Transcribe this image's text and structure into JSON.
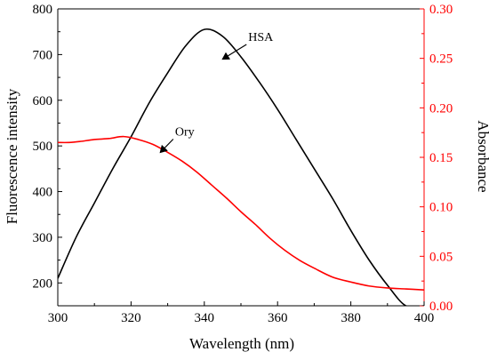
{
  "chart_data": {
    "type": "line",
    "xlabel": "Wavelength (nm)",
    "ylabel_left": "Fluorescence intensity",
    "ylabel_right": "Absorbance",
    "xlim": [
      300,
      400
    ],
    "ylim_left": [
      150,
      800
    ],
    "ylim_right": [
      0.0,
      0.3
    ],
    "x_ticks": [
      "300",
      "320",
      "340",
      "360",
      "380",
      "400"
    ],
    "y_left_ticks": [
      "200",
      "300",
      "400",
      "500",
      "600",
      "700",
      "800"
    ],
    "y_right_ticks": [
      "0.00",
      "0.05",
      "0.10",
      "0.15",
      "0.20",
      "0.25",
      "0.30"
    ],
    "left_axis_color": "#000000",
    "right_axis_color": "#ff0000",
    "series": [
      {
        "name": "HSA",
        "axis": "left",
        "color": "#000000",
        "x": [
          300,
          305,
          310,
          315,
          320,
          325,
          330,
          335,
          340,
          345,
          350,
          355,
          360,
          365,
          370,
          375,
          380,
          385,
          390,
          395,
          400
        ],
        "y": [
          210,
          300,
          375,
          450,
          520,
          595,
          660,
          720,
          755,
          740,
          695,
          640,
          580,
          515,
          450,
          385,
          315,
          250,
          195,
          150,
          150
        ]
      },
      {
        "name": "Ory",
        "axis": "right",
        "color": "#ff0000",
        "x": [
          300,
          303,
          306,
          310,
          314,
          318,
          322,
          326,
          330,
          334,
          338,
          342,
          346,
          350,
          354,
          358,
          362,
          366,
          370,
          375,
          380,
          385,
          390,
          395,
          400
        ],
        "y": [
          0.165,
          0.165,
          0.166,
          0.168,
          0.169,
          0.171,
          0.168,
          0.163,
          0.155,
          0.146,
          0.135,
          0.122,
          0.109,
          0.095,
          0.082,
          0.068,
          0.056,
          0.046,
          0.038,
          0.029,
          0.024,
          0.02,
          0.018,
          0.017,
          0.016
        ]
      }
    ],
    "annotations": [
      {
        "text": "HSA",
        "x": 352,
        "y": 730,
        "axis": "left",
        "arrow_to_x": 345,
        "arrow_to_y": 690
      },
      {
        "text": "Ory",
        "x": 332,
        "y": 0.172,
        "axis": "right",
        "arrow_to_x": 328,
        "arrow_to_y": 0.155
      }
    ]
  }
}
